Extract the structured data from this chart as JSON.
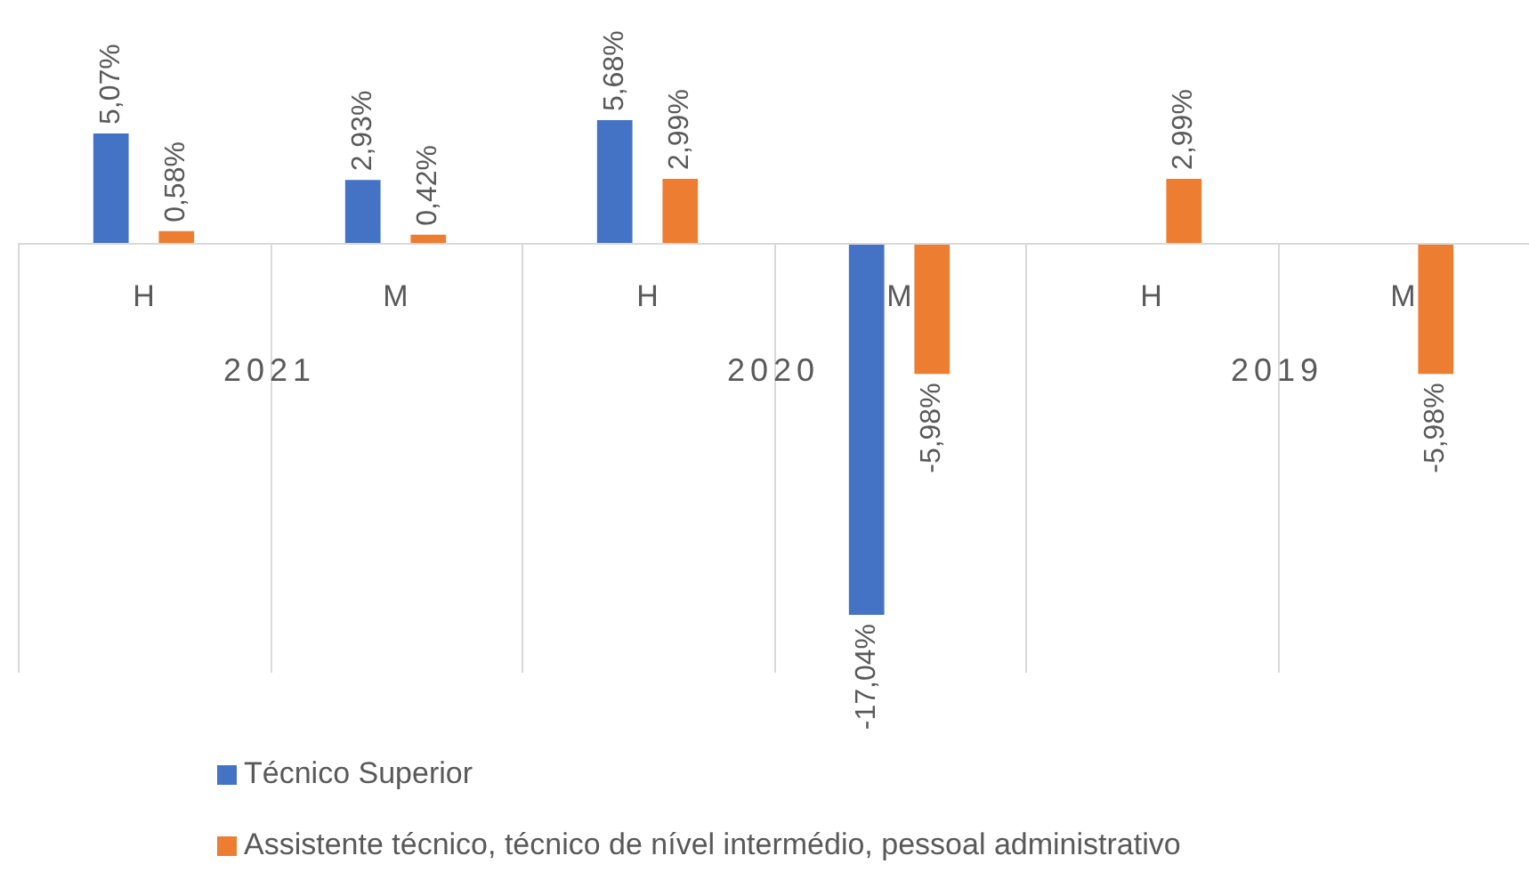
{
  "chart_data": {
    "type": "bar",
    "categories": [
      "H",
      "M",
      "H",
      "M",
      "H",
      "M"
    ],
    "series": [
      {
        "name": "Técnico Superior",
        "color": "#4472c4",
        "values": [
          5.07,
          2.93,
          5.68,
          -17.04,
          null,
          null
        ],
        "value_labels": [
          "5,07%",
          "2,93%",
          "5,68%",
          "-17,04%",
          null,
          null
        ]
      },
      {
        "name": "Assistente técnico, técnico de nível intermédio, pessoal administrativo",
        "color": "#ed7d31",
        "values": [
          0.58,
          0.42,
          2.99,
          -5.98,
          2.99,
          -5.98
        ],
        "value_labels": [
          "0,58%",
          "0,42%",
          "2,99%",
          "-5,98%",
          "2,99%",
          "-5,98%"
        ]
      }
    ],
    "annotations": [
      "2021",
      "2020",
      "2019"
    ],
    "grid": "x",
    "legend": "bottom",
    "tick_labels": "x"
  }
}
